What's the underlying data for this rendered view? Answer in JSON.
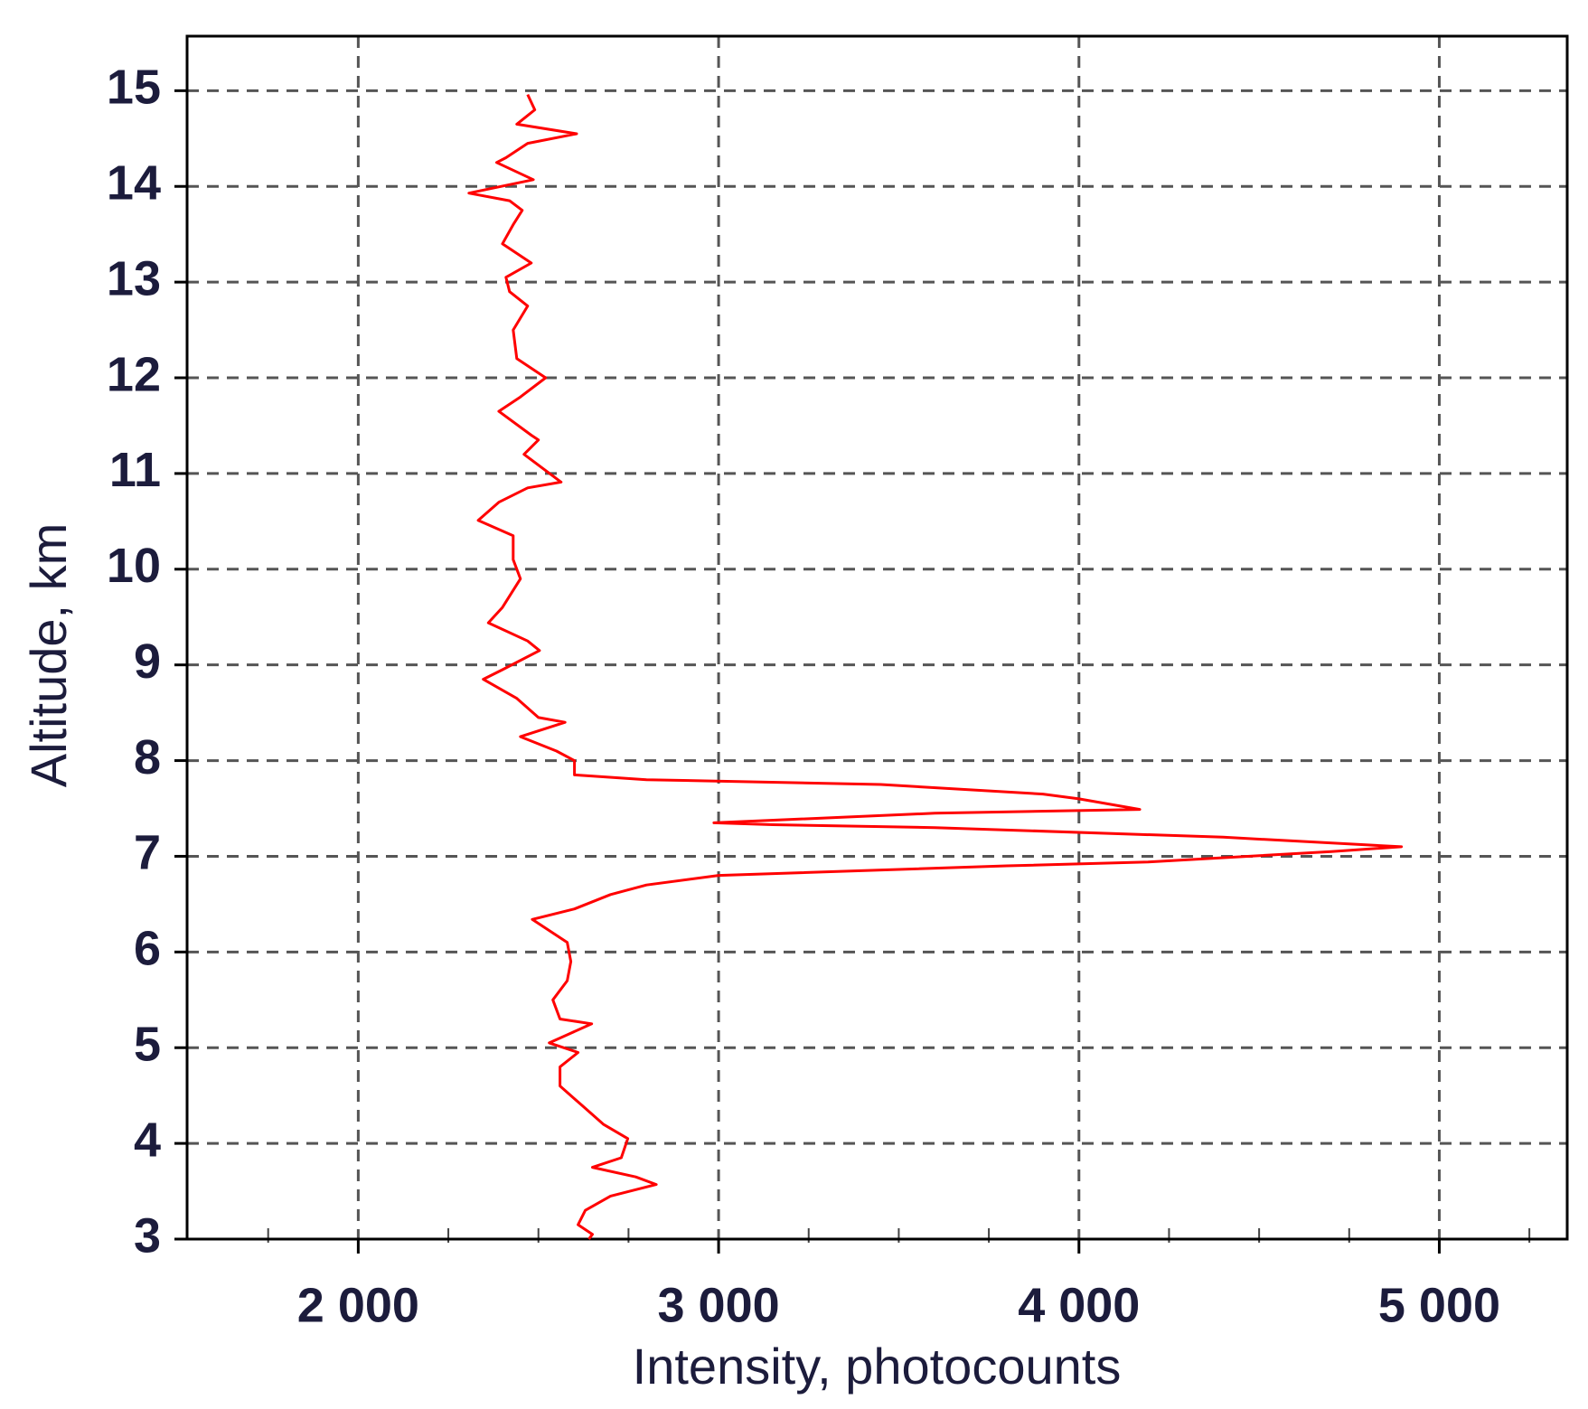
{
  "chart_data": {
    "type": "line",
    "x_label": "Intensity, photocounts",
    "y_label": "Altitude, km",
    "xlim": [
      1525,
      5355
    ],
    "ylim": [
      3,
      15.57
    ],
    "xticks": [
      {
        "value": 2000,
        "label": "2 000"
      },
      {
        "value": 3000,
        "label": "3 000"
      },
      {
        "value": 4000,
        "label": "4 000"
      },
      {
        "value": 5000,
        "label": "5 000"
      }
    ],
    "xminorticks": [
      1750,
      2250,
      2500,
      2750,
      3250,
      3500,
      3750,
      4250,
      4500,
      4750,
      5250
    ],
    "yticks": [
      3,
      4,
      5,
      6,
      7,
      8,
      9,
      10,
      11,
      12,
      13,
      14,
      15
    ],
    "grid": true,
    "series": [
      {
        "color": "#ff0000",
        "x": [
          2470,
          2490,
          2440,
          2606,
          2470,
          2410,
          2384,
          2486,
          2307,
          2420,
          2455,
          2430,
          2400,
          2480,
          2410,
          2420,
          2470,
          2430,
          2440,
          2520,
          2450,
          2390,
          2480,
          2500,
          2460,
          2563,
          2470,
          2390,
          2333,
          2430,
          2430,
          2450,
          2400,
          2361,
          2470,
          2503,
          2400,
          2347,
          2440,
          2500,
          2574,
          2450,
          2550,
          2600,
          2600,
          2800,
          3450,
          3900,
          4000,
          4169,
          3600,
          2987,
          3150,
          3600,
          4400,
          4895,
          4700,
          4192,
          3800,
          3000,
          2800,
          2700,
          2600,
          2483,
          2580,
          2590,
          2580,
          2540,
          2560,
          2648,
          2530,
          2610,
          2560,
          2560,
          2620,
          2680,
          2748,
          2730,
          2650,
          2770,
          2827,
          2700,
          2630,
          2610,
          2650,
          2640
        ],
        "y": [
          14.96,
          14.8,
          14.65,
          14.55,
          14.45,
          14.3,
          14.25,
          14.07,
          13.93,
          13.85,
          13.75,
          13.6,
          13.4,
          13.2,
          13.05,
          12.9,
          12.75,
          12.5,
          12.2,
          12.0,
          11.8,
          11.65,
          11.4,
          11.35,
          11.2,
          10.91,
          10.85,
          10.7,
          10.51,
          10.35,
          10.1,
          9.9,
          9.6,
          9.44,
          9.25,
          9.15,
          8.95,
          8.85,
          8.65,
          8.45,
          8.4,
          8.25,
          8.1,
          8.0,
          7.85,
          7.8,
          7.75,
          7.65,
          7.6,
          7.49,
          7.45,
          7.35,
          7.33,
          7.3,
          7.2,
          7.1,
          7.05,
          6.94,
          6.9,
          6.8,
          6.7,
          6.6,
          6.45,
          6.34,
          6.1,
          5.9,
          5.7,
          5.5,
          5.3,
          5.25,
          5.05,
          4.95,
          4.8,
          4.6,
          4.4,
          4.2,
          4.05,
          3.85,
          3.75,
          3.65,
          3.57,
          3.45,
          3.3,
          3.15,
          3.05,
          3.0
        ]
      }
    ]
  }
}
